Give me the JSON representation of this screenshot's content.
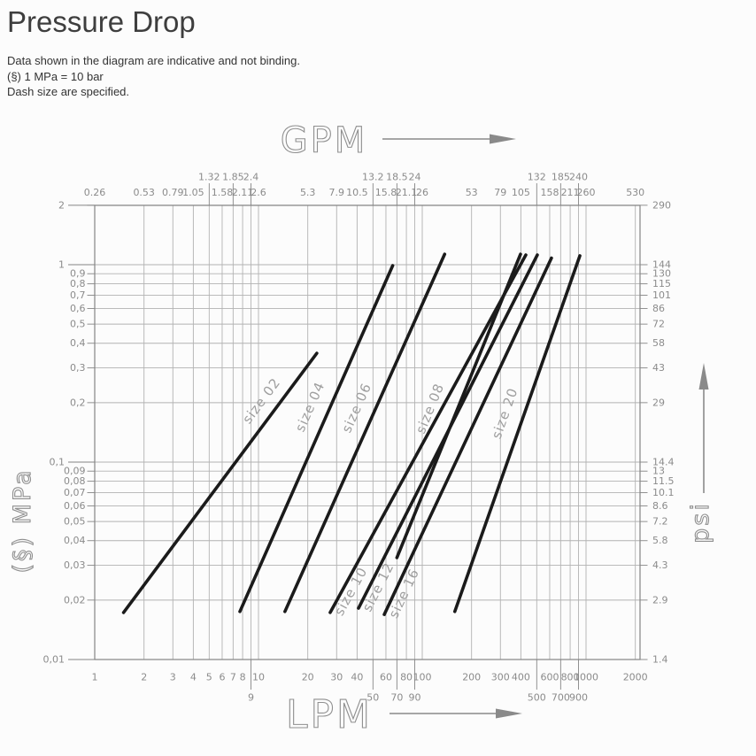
{
  "page": {
    "background": "#fcfcfc"
  },
  "header": {
    "title": "Pressure Drop",
    "notes": [
      "Data shown in the diagram are indicative and not binding.",
      "(§) 1 MPa = 10 bar",
      "Dash size are specified."
    ]
  },
  "chart_data": {
    "type": "line",
    "scale": "log-log",
    "x_bottom": {
      "label": "LPM",
      "range": [
        1,
        2000
      ],
      "gridlines": [
        1,
        2,
        3,
        4,
        5,
        6,
        7,
        8,
        9,
        10,
        20,
        30,
        40,
        50,
        60,
        70,
        80,
        90,
        100,
        200,
        300,
        400,
        500,
        600,
        700,
        800,
        900,
        1000,
        2000
      ],
      "ticks_main": [
        {
          "v": 1,
          "t": "1"
        },
        {
          "v": 2,
          "t": "2"
        },
        {
          "v": 3,
          "t": "3"
        },
        {
          "v": 4,
          "t": "4"
        },
        {
          "v": 5,
          "t": "5"
        },
        {
          "v": 6,
          "t": "6"
        },
        {
          "v": 7,
          "t": "7"
        },
        {
          "v": 8,
          "t": "8"
        },
        {
          "v": 10,
          "t": "10"
        },
        {
          "v": 20,
          "t": "20"
        },
        {
          "v": 30,
          "t": "30"
        },
        {
          "v": 40,
          "t": "40"
        },
        {
          "v": 60,
          "t": "60"
        },
        {
          "v": 80,
          "t": "80"
        },
        {
          "v": 100,
          "t": "100"
        },
        {
          "v": 200,
          "t": "200"
        },
        {
          "v": 300,
          "t": "300"
        },
        {
          "v": 400,
          "t": "400"
        },
        {
          "v": 600,
          "t": "600"
        },
        {
          "v": 800,
          "t": "800"
        },
        {
          "v": 1000,
          "t": "1000"
        },
        {
          "v": 2000,
          "t": "2000"
        }
      ],
      "ticks_low": [
        {
          "v": 9,
          "t": "9"
        },
        {
          "v": 50,
          "t": "50"
        },
        {
          "v": 70,
          "t": "70"
        },
        {
          "v": 90,
          "t": "90"
        },
        {
          "v": 500,
          "t": "500"
        },
        {
          "v": 700,
          "t": "700"
        },
        {
          "v": 900,
          "t": "900"
        }
      ]
    },
    "x_top": {
      "label": "GPM",
      "ticks_main": [
        {
          "v": 1,
          "t": "0.26"
        },
        {
          "v": 2,
          "t": "0.53"
        },
        {
          "v": 3,
          "t": "0.79"
        },
        {
          "v": 4,
          "t": "1.05"
        },
        {
          "v": 6,
          "t": "1.58"
        },
        {
          "v": 8,
          "t": "2.11"
        },
        {
          "v": 10,
          "t": "2.6"
        },
        {
          "v": 20,
          "t": "5.3"
        },
        {
          "v": 30,
          "t": "7.9"
        },
        {
          "v": 40,
          "t": "10.5"
        },
        {
          "v": 60,
          "t": "15.8"
        },
        {
          "v": 80,
          "t": "21.1"
        },
        {
          "v": 100,
          "t": "26"
        },
        {
          "v": 200,
          "t": "53"
        },
        {
          "v": 300,
          "t": "79"
        },
        {
          "v": 400,
          "t": "105"
        },
        {
          "v": 600,
          "t": "158"
        },
        {
          "v": 800,
          "t": "211"
        },
        {
          "v": 1000,
          "t": "260"
        },
        {
          "v": 2000,
          "t": "530"
        }
      ],
      "ticks_raised": [
        {
          "v": 5,
          "t": "1.32"
        },
        {
          "v": 7,
          "t": "1.85"
        },
        {
          "v": 9,
          "t": "2.4"
        },
        {
          "v": 50,
          "t": "13.2"
        },
        {
          "v": 70,
          "t": "18.5"
        },
        {
          "v": 90,
          "t": "24"
        },
        {
          "v": 500,
          "t": "132"
        },
        {
          "v": 700,
          "t": "185"
        },
        {
          "v": 900,
          "t": "240"
        }
      ]
    },
    "y_left": {
      "label": "(§) MPa",
      "range": [
        0.01,
        2
      ],
      "gridlines": [
        0.01,
        0.02,
        0.03,
        0.04,
        0.05,
        0.06,
        0.07,
        0.08,
        0.09,
        0.1,
        0.2,
        0.3,
        0.4,
        0.5,
        0.6,
        0.7,
        0.8,
        0.9,
        1,
        2
      ],
      "ticks": [
        {
          "v": 2,
          "t": "2",
          "major": true
        },
        {
          "v": 1,
          "t": "1",
          "major": true
        },
        {
          "v": 0.9,
          "t": "0,9"
        },
        {
          "v": 0.8,
          "t": "0,8"
        },
        {
          "v": 0.7,
          "t": "0,7"
        },
        {
          "v": 0.6,
          "t": "0,6"
        },
        {
          "v": 0.5,
          "t": "0,5"
        },
        {
          "v": 0.4,
          "t": "0,4"
        },
        {
          "v": 0.3,
          "t": "0,3"
        },
        {
          "v": 0.2,
          "t": "0,2"
        },
        {
          "v": 0.1,
          "t": "0,1",
          "major": true
        },
        {
          "v": 0.09,
          "t": "0,09"
        },
        {
          "v": 0.08,
          "t": "0,08"
        },
        {
          "v": 0.07,
          "t": "0,07"
        },
        {
          "v": 0.06,
          "t": "0,06"
        },
        {
          "v": 0.05,
          "t": "0,05"
        },
        {
          "v": 0.04,
          "t": "0,04"
        },
        {
          "v": 0.03,
          "t": "0,03"
        },
        {
          "v": 0.02,
          "t": "0,02"
        },
        {
          "v": 0.01,
          "t": "0,01",
          "major": true
        }
      ]
    },
    "y_right": {
      "label": "psi",
      "ticks": [
        {
          "v": 2,
          "t": "290"
        },
        {
          "v": 1,
          "t": "144"
        },
        {
          "v": 0.9,
          "t": "130"
        },
        {
          "v": 0.8,
          "t": "115"
        },
        {
          "v": 0.7,
          "t": "101"
        },
        {
          "v": 0.6,
          "t": "86"
        },
        {
          "v": 0.5,
          "t": "72"
        },
        {
          "v": 0.4,
          "t": "58"
        },
        {
          "v": 0.3,
          "t": "43"
        },
        {
          "v": 0.2,
          "t": "29"
        },
        {
          "v": 0.1,
          "t": "14.4"
        },
        {
          "v": 0.09,
          "t": "13"
        },
        {
          "v": 0.08,
          "t": "11.5"
        },
        {
          "v": 0.07,
          "t": "10.1"
        },
        {
          "v": 0.06,
          "t": "8.6"
        },
        {
          "v": 0.05,
          "t": "7.2"
        },
        {
          "v": 0.04,
          "t": "5.8"
        },
        {
          "v": 0.03,
          "t": "4.3"
        },
        {
          "v": 0.02,
          "t": "2.9"
        },
        {
          "v": 0.01,
          "t": "1.4"
        }
      ]
    },
    "series": [
      {
        "label": "size 02",
        "points": [
          [
            1.5,
            0.0173
          ],
          [
            22.7,
            0.356
          ]
        ],
        "label_t": 0.78,
        "label_n": 13
      },
      {
        "label": "size 04",
        "points": [
          [
            7.7,
            0.0175
          ],
          [
            66,
            0.99
          ]
        ],
        "label_t": 0.57,
        "label_n": 16
      },
      {
        "label": "size 06",
        "points": [
          [
            14.5,
            0.0175
          ],
          [
            137,
            1.13
          ]
        ],
        "label_t": 0.55,
        "label_n": 15
      },
      {
        "label": "size 08",
        "points": [
          [
            70,
            0.0328
          ],
          [
            398,
            1.13
          ]
        ],
        "label_t": 0.46,
        "label_n": 24
      },
      {
        "label": "size 10",
        "points": [
          [
            27.4,
            0.0173
          ],
          [
            429,
            1.12
          ]
        ],
        "label_t": 0.07,
        "label_n": -14
      },
      {
        "label": "size 12",
        "points": [
          [
            40.8,
            0.0182
          ],
          [
            504,
            1.12
          ]
        ],
        "label_t": 0.07,
        "label_n": -14
      },
      {
        "label": "size 16",
        "points": [
          [
            58.6,
            0.0169
          ],
          [
            615,
            1.08
          ]
        ],
        "label_t": 0.07,
        "label_n": -15
      },
      {
        "label": "size 20",
        "points": [
          [
            158,
            0.0175
          ],
          [
            917,
            1.11
          ]
        ],
        "label_t": 0.54,
        "label_n": 16
      }
    ],
    "colors": {
      "line": "#1b1b1b",
      "grid": "#b2b2b2",
      "frame": "#858585",
      "tick_text": "#8b8b8b",
      "axis_title": "#8f8f8f",
      "size_label": "#9f9f9f",
      "arrow": "#8a8a8a"
    }
  }
}
